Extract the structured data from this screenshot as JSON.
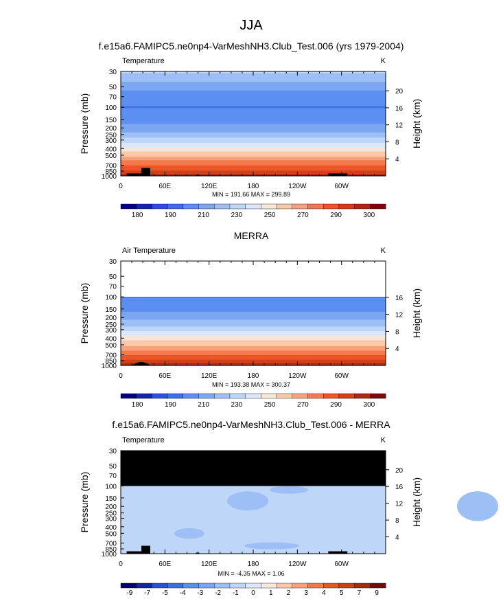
{
  "figure": {
    "title": "JJA",
    "x_ticks": [
      "0",
      "60E",
      "120E",
      "180",
      "120W",
      "60W"
    ],
    "pressure_ticks": [
      "30",
      "50",
      "70",
      "100",
      "150",
      "200",
      "250",
      "300",
      "400",
      "500",
      "700",
      "850",
      "1000"
    ],
    "ylabel_left": "Pressure (mb)",
    "ylabel_right": "Height (km)"
  },
  "chart_data": [
    {
      "type": "heatmap",
      "title": "f.e15a6.FAMIPC5.ne0np4-VarMeshNH3.Club_Test.006 (yrs 1979-2004)",
      "panel_label": "Temperature",
      "units": "K",
      "stats": "MIN = 191.66  MAX = 299.89",
      "min": 191.66,
      "max": 299.89,
      "x_ticks": [
        "0",
        "60E",
        "120E",
        "180",
        "120W",
        "60W"
      ],
      "xlim": [
        0,
        360
      ],
      "ylim_mb": [
        1000,
        30
      ],
      "y_scale": "log",
      "height_ticks_km": [
        "20",
        "16",
        "12",
        "8",
        "4"
      ],
      "colorbar_labels": [
        "180",
        "190",
        "210",
        "230",
        "250",
        "270",
        "290",
        "300"
      ],
      "colorbar_colors": [
        "#03027a",
        "#1226a6",
        "#2d4ee0",
        "#3c6ee8",
        "#5b8ff0",
        "#7aa6f2",
        "#9dbff5",
        "#bed6f8",
        "#dce8f9",
        "#f8e6d8",
        "#f9c9ab",
        "#f7a27a",
        "#f47a4e",
        "#ec5626",
        "#d2401a",
        "#a82a12",
        "#7a0a0a"
      ],
      "levels_mb": [
        30,
        50,
        70,
        100,
        150,
        200,
        250,
        300,
        400,
        500,
        700,
        850,
        1000
      ],
      "profile_K": [
        230,
        216,
        210,
        205,
        210,
        216,
        224,
        232,
        246,
        258,
        274,
        284,
        292
      ]
    },
    {
      "type": "heatmap",
      "title": "MERRA",
      "panel_label": "Air Temperature",
      "units": "K",
      "stats": "MIN = 193.38  MAX = 300.37",
      "min": 193.38,
      "max": 300.37,
      "x_ticks": [
        "0",
        "60E",
        "120E",
        "180",
        "120W",
        "60W"
      ],
      "xlim": [
        0,
        360
      ],
      "ylim_mb": [
        1000,
        30
      ],
      "y_scale": "log",
      "height_ticks_km": [
        "16",
        "12",
        "8",
        "4"
      ],
      "colorbar_labels": [
        "180",
        "190",
        "210",
        "230",
        "250",
        "270",
        "290",
        "300"
      ],
      "colorbar_colors": [
        "#03027a",
        "#1226a6",
        "#2d4ee0",
        "#3c6ee8",
        "#5b8ff0",
        "#7aa6f2",
        "#9dbff5",
        "#bed6f8",
        "#dce8f9",
        "#f8e6d8",
        "#f9c9ab",
        "#f7a27a",
        "#f47a4e",
        "#ec5626",
        "#d2401a",
        "#a82a12",
        "#7a0a0a"
      ],
      "levels_mb": [
        100,
        150,
        200,
        250,
        300,
        400,
        500,
        700,
        850,
        1000
      ],
      "profile_K": [
        205,
        211,
        218,
        225,
        233,
        247,
        258,
        274,
        284,
        293
      ]
    },
    {
      "type": "heatmap",
      "title": "f.e15a6.FAMIPC5.ne0np4-VarMeshNH3.Club_Test.006 - MERRA",
      "panel_label": "Temperature",
      "units": "K",
      "stats": "MIN = -4.35  MAX =  1.06",
      "min": -4.35,
      "max": 1.06,
      "x_ticks": [
        "0",
        "60E",
        "120E",
        "180",
        "120W",
        "60W"
      ],
      "xlim": [
        0,
        360
      ],
      "ylim_mb": [
        1000,
        30
      ],
      "y_scale": "log",
      "height_ticks_km": [
        "20",
        "16",
        "12",
        "8",
        "4"
      ],
      "colorbar_labels": [
        "-9",
        "-7",
        "-5",
        "-4",
        "-3",
        "-2",
        "-1",
        "0",
        "1",
        "2",
        "3",
        "4",
        "5",
        "7",
        "9"
      ],
      "colorbar_colors": [
        "#03027a",
        "#1226a6",
        "#2d4ee0",
        "#3c6ee8",
        "#5b8ff0",
        "#7aa6f2",
        "#9dbff5",
        "#bed6f8",
        "#dce8f9",
        "#f8e6d8",
        "#f9c9ab",
        "#f7a27a",
        "#f47a4e",
        "#ec5626",
        "#d2401a",
        "#a82a12",
        "#7a0a0a"
      ],
      "missing_above_mb": 100,
      "dominant_range_K": [
        -2,
        0
      ],
      "pockets_range_K": [
        -3,
        -2
      ]
    }
  ]
}
